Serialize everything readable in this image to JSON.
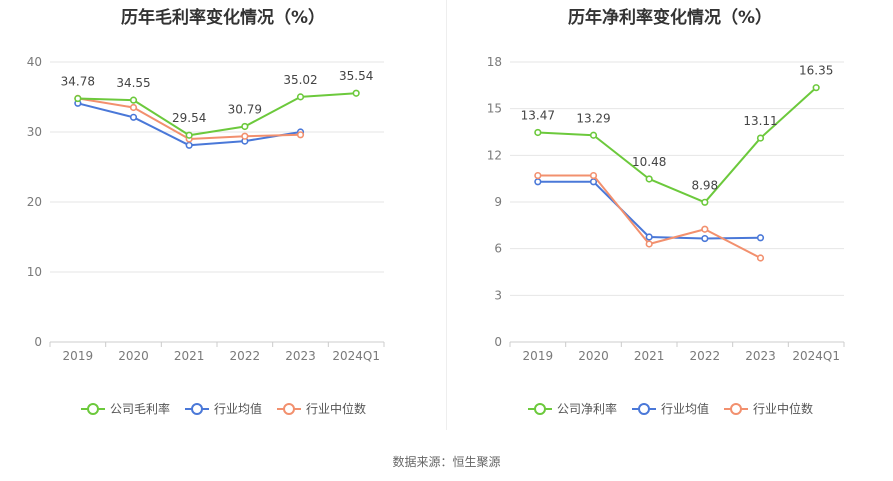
{
  "colors": {
    "company": "#6cc93c",
    "industry_avg": "#4a78d8",
    "industry_median": "#f2906e",
    "grid": "#e6e6e6",
    "axis": "#cccccc",
    "tick_text": "#7a7a7a",
    "label_text": "#444444"
  },
  "source_text": "数据来源：恒生聚源",
  "chart_data": [
    {
      "type": "line",
      "title": "历年毛利率变化情况（%）",
      "categories": [
        "2019",
        "2020",
        "2021",
        "2022",
        "2023",
        "2024Q1"
      ],
      "ylim": [
        0,
        40
      ],
      "yticks": [
        0,
        10,
        20,
        30,
        40
      ],
      "grid": true,
      "legend_position": "bottom",
      "series": [
        {
          "name": "公司毛利率",
          "role": "company",
          "values": [
            34.78,
            34.55,
            29.54,
            30.79,
            35.02,
            35.54
          ],
          "labels": [
            "34.78",
            "34.55",
            "29.54",
            "30.79",
            "35.02",
            "35.54"
          ]
        },
        {
          "name": "行业均值",
          "role": "industry_avg",
          "values": [
            34.1,
            32.1,
            28.1,
            28.7,
            30.0,
            null
          ]
        },
        {
          "name": "行业中位数",
          "role": "industry_median",
          "values": [
            34.8,
            33.5,
            29.0,
            29.4,
            29.6,
            null
          ]
        }
      ]
    },
    {
      "type": "line",
      "title": "历年净利率变化情况（%）",
      "categories": [
        "2019",
        "2020",
        "2021",
        "2022",
        "2023",
        "2024Q1"
      ],
      "ylim": [
        0,
        18
      ],
      "yticks": [
        0,
        3,
        6,
        9,
        12,
        15,
        18
      ],
      "grid": true,
      "legend_position": "bottom",
      "series": [
        {
          "name": "公司净利率",
          "role": "company",
          "values": [
            13.47,
            13.29,
            10.48,
            8.98,
            13.11,
            16.35
          ],
          "labels": [
            "13.47",
            "13.29",
            "10.48",
            "8.98",
            "13.11",
            "16.35"
          ]
        },
        {
          "name": "行业均值",
          "role": "industry_avg",
          "values": [
            10.3,
            10.3,
            6.75,
            6.65,
            6.7,
            null
          ]
        },
        {
          "name": "行业中位数",
          "role": "industry_median",
          "values": [
            10.7,
            10.7,
            6.3,
            7.25,
            5.4,
            null
          ]
        }
      ]
    }
  ]
}
